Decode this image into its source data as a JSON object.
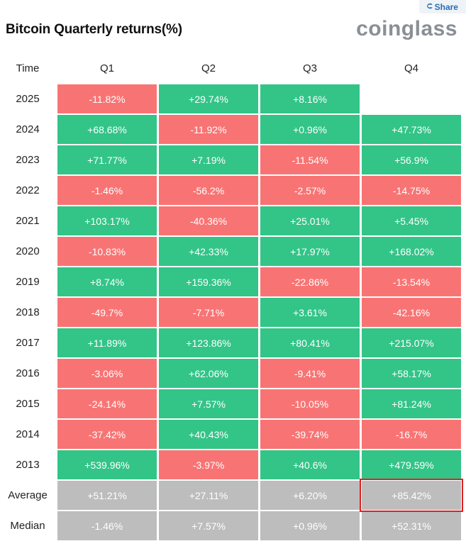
{
  "share_label": "Share",
  "title": "Bitcoin Quarterly returns(%)",
  "brand": "coinglass",
  "colors": {
    "positive": "#33c488",
    "negative": "#f87474",
    "stat": "#bdbdbd",
    "highlight": "#e02020"
  },
  "highlight_cell": {
    "row": "Average",
    "column": "Q4"
  },
  "chart_data": {
    "type": "table",
    "columns": [
      "Time",
      "Q1",
      "Q2",
      "Q3",
      "Q4"
    ],
    "rows": [
      {
        "label": "2025",
        "kind": "year",
        "values": [
          "-11.82%",
          "+29.74%",
          "+8.16%",
          ""
        ]
      },
      {
        "label": "2024",
        "kind": "year",
        "values": [
          "+68.68%",
          "-11.92%",
          "+0.96%",
          "+47.73%"
        ]
      },
      {
        "label": "2023",
        "kind": "year",
        "values": [
          "+71.77%",
          "+7.19%",
          "-11.54%",
          "+56.9%"
        ]
      },
      {
        "label": "2022",
        "kind": "year",
        "values": [
          "-1.46%",
          "-56.2%",
          "-2.57%",
          "-14.75%"
        ]
      },
      {
        "label": "2021",
        "kind": "year",
        "values": [
          "+103.17%",
          "-40.36%",
          "+25.01%",
          "+5.45%"
        ]
      },
      {
        "label": "2020",
        "kind": "year",
        "values": [
          "-10.83%",
          "+42.33%",
          "+17.97%",
          "+168.02%"
        ]
      },
      {
        "label": "2019",
        "kind": "year",
        "values": [
          "+8.74%",
          "+159.36%",
          "-22.86%",
          "-13.54%"
        ]
      },
      {
        "label": "2018",
        "kind": "year",
        "values": [
          "-49.7%",
          "-7.71%",
          "+3.61%",
          "-42.16%"
        ]
      },
      {
        "label": "2017",
        "kind": "year",
        "values": [
          "+11.89%",
          "+123.86%",
          "+80.41%",
          "+215.07%"
        ]
      },
      {
        "label": "2016",
        "kind": "year",
        "values": [
          "-3.06%",
          "+62.06%",
          "-9.41%",
          "+58.17%"
        ]
      },
      {
        "label": "2015",
        "kind": "year",
        "values": [
          "-24.14%",
          "+7.57%",
          "-10.05%",
          "+81.24%"
        ]
      },
      {
        "label": "2014",
        "kind": "year",
        "values": [
          "-37.42%",
          "+40.43%",
          "-39.74%",
          "-16.7%"
        ]
      },
      {
        "label": "2013",
        "kind": "year",
        "values": [
          "+539.96%",
          "-3.97%",
          "+40.6%",
          "+479.59%"
        ]
      },
      {
        "label": "Average",
        "kind": "stat",
        "values": [
          "+51.21%",
          "+27.11%",
          "+6.20%",
          "+85.42%"
        ]
      },
      {
        "label": "Median",
        "kind": "stat",
        "values": [
          "-1.46%",
          "+7.57%",
          "+0.96%",
          "+52.31%"
        ]
      }
    ]
  }
}
